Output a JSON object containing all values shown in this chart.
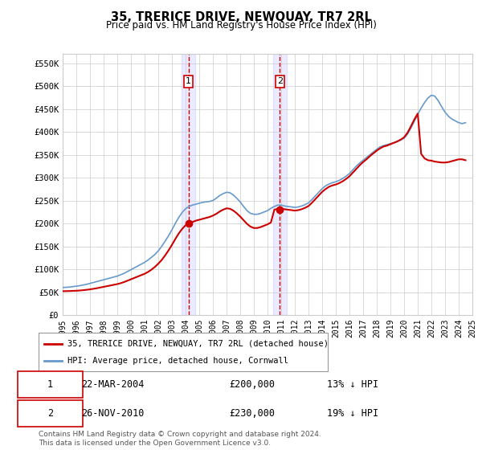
{
  "title": "35, TRERICE DRIVE, NEWQUAY, TR7 2RL",
  "subtitle": "Price paid vs. HM Land Registry's House Price Index (HPI)",
  "hpi_label": "HPI: Average price, detached house, Cornwall",
  "property_label": "35, TRERICE DRIVE, NEWQUAY, TR7 2RL (detached house)",
  "footnote": "Contains HM Land Registry data © Crown copyright and database right 2024.\nThis data is licensed under the Open Government Licence v3.0.",
  "ylim": [
    0,
    570000
  ],
  "yticks": [
    0,
    50000,
    100000,
    150000,
    200000,
    250000,
    300000,
    350000,
    400000,
    450000,
    500000,
    550000
  ],
  "ytick_labels": [
    "£0",
    "£50K",
    "£100K",
    "£150K",
    "£200K",
    "£250K",
    "£300K",
    "£350K",
    "£400K",
    "£450K",
    "£500K",
    "£550K"
  ],
  "xmin_year": 1995,
  "xmax_year": 2025,
  "xtick_years": [
    1995,
    1996,
    1997,
    1998,
    1999,
    2000,
    2001,
    2002,
    2003,
    2004,
    2005,
    2006,
    2007,
    2008,
    2009,
    2010,
    2011,
    2012,
    2013,
    2014,
    2015,
    2016,
    2017,
    2018,
    2019,
    2020,
    2021,
    2022,
    2023,
    2024,
    2025
  ],
  "property_color": "#cc0000",
  "hpi_color": "#6699cc",
  "annotation_line_color": "#cc0000",
  "annotation_bg_color": "#ddeeff",
  "transaction1": {
    "label": "1",
    "date": "22-MAR-2004",
    "price": 200000,
    "pct": "13%",
    "direction": "↓",
    "year": 2004.22
  },
  "transaction2": {
    "label": "2",
    "date": "26-NOV-2010",
    "price": 230000,
    "pct": "19%",
    "direction": "↓",
    "year": 2010.9
  },
  "hpi_data_x": [
    1995,
    1995.25,
    1995.5,
    1995.75,
    1996,
    1996.25,
    1996.5,
    1996.75,
    1997,
    1997.25,
    1997.5,
    1997.75,
    1998,
    1998.25,
    1998.5,
    1998.75,
    1999,
    1999.25,
    1999.5,
    1999.75,
    2000,
    2000.25,
    2000.5,
    2000.75,
    2001,
    2001.25,
    2001.5,
    2001.75,
    2002,
    2002.25,
    2002.5,
    2002.75,
    2003,
    2003.25,
    2003.5,
    2003.75,
    2004,
    2004.25,
    2004.5,
    2004.75,
    2005,
    2005.25,
    2005.5,
    2005.75,
    2006,
    2006.25,
    2006.5,
    2006.75,
    2007,
    2007.25,
    2007.5,
    2007.75,
    2008,
    2008.25,
    2008.5,
    2008.75,
    2009,
    2009.25,
    2009.5,
    2009.75,
    2010,
    2010.25,
    2010.5,
    2010.75,
    2011,
    2011.25,
    2011.5,
    2011.75,
    2012,
    2012.25,
    2012.5,
    2012.75,
    2013,
    2013.25,
    2013.5,
    2013.75,
    2014,
    2014.25,
    2014.5,
    2014.75,
    2015,
    2015.25,
    2015.5,
    2015.75,
    2016,
    2016.25,
    2016.5,
    2016.75,
    2017,
    2017.25,
    2017.5,
    2017.75,
    2018,
    2018.25,
    2018.5,
    2018.75,
    2019,
    2019.25,
    2019.5,
    2019.75,
    2020,
    2020.25,
    2020.5,
    2020.75,
    2021,
    2021.25,
    2021.5,
    2021.75,
    2022,
    2022.25,
    2022.5,
    2022.75,
    2023,
    2023.25,
    2023.5,
    2023.75,
    2024,
    2024.25,
    2024.5
  ],
  "hpi_data_y": [
    60000,
    60500,
    61000,
    62000,
    63000,
    64000,
    65500,
    67000,
    69000,
    71000,
    73000,
    75000,
    77000,
    79000,
    81000,
    83000,
    85000,
    88000,
    91000,
    95000,
    99000,
    103000,
    107000,
    111000,
    115000,
    120000,
    126000,
    132000,
    140000,
    150000,
    161000,
    173000,
    186000,
    200000,
    213000,
    224000,
    232000,
    237000,
    240000,
    242000,
    244000,
    246000,
    247000,
    248000,
    250000,
    255000,
    261000,
    265000,
    268000,
    267000,
    262000,
    255000,
    247000,
    237000,
    228000,
    222000,
    220000,
    220000,
    222000,
    225000,
    228000,
    233000,
    237000,
    240000,
    240000,
    238000,
    237000,
    236000,
    235000,
    236000,
    238000,
    241000,
    245000,
    252000,
    260000,
    268000,
    276000,
    282000,
    286000,
    289000,
    291000,
    294000,
    298000,
    303000,
    309000,
    317000,
    325000,
    332000,
    338000,
    344000,
    350000,
    356000,
    362000,
    367000,
    370000,
    372000,
    374000,
    376000,
    379000,
    382000,
    386000,
    395000,
    408000,
    423000,
    438000,
    452000,
    464000,
    474000,
    480000,
    478000,
    468000,
    455000,
    443000,
    434000,
    428000,
    424000,
    420000,
    418000,
    420000
  ],
  "property_data_x": [
    1995,
    1995.25,
    1995.5,
    1995.75,
    1996,
    1996.25,
    1996.5,
    1996.75,
    1997,
    1997.25,
    1997.5,
    1997.75,
    1998,
    1998.25,
    1998.5,
    1998.75,
    1999,
    1999.25,
    1999.5,
    1999.75,
    2000,
    2000.25,
    2000.5,
    2000.75,
    2001,
    2001.25,
    2001.5,
    2001.75,
    2002,
    2002.25,
    2002.5,
    2002.75,
    2003,
    2003.25,
    2003.5,
    2003.75,
    2004,
    2004.25,
    2004.5,
    2004.75,
    2005,
    2005.25,
    2005.5,
    2005.75,
    2006,
    2006.25,
    2006.5,
    2006.75,
    2007,
    2007.25,
    2007.5,
    2007.75,
    2008,
    2008.25,
    2008.5,
    2008.75,
    2009,
    2009.25,
    2009.5,
    2009.75,
    2010,
    2010.25,
    2010.5,
    2010.75,
    2011,
    2011.25,
    2011.5,
    2011.75,
    2012,
    2012.25,
    2012.5,
    2012.75,
    2013,
    2013.25,
    2013.5,
    2013.75,
    2014,
    2014.25,
    2014.5,
    2014.75,
    2015,
    2015.25,
    2015.5,
    2015.75,
    2016,
    2016.25,
    2016.5,
    2016.75,
    2017,
    2017.25,
    2017.5,
    2017.75,
    2018,
    2018.25,
    2018.5,
    2018.75,
    2019,
    2019.25,
    2019.5,
    2019.75,
    2020,
    2020.25,
    2020.5,
    2020.75,
    2021,
    2021.25,
    2021.5,
    2021.75,
    2022,
    2022.25,
    2022.5,
    2022.75,
    2023,
    2023.25,
    2023.5,
    2023.75,
    2024,
    2024.25,
    2024.5
  ],
  "property_data_y": [
    52000,
    52200,
    52400,
    52700,
    53000,
    53500,
    54200,
    55000,
    56000,
    57200,
    58500,
    60000,
    61500,
    63000,
    64500,
    66000,
    67500,
    69500,
    72000,
    75000,
    78000,
    81000,
    84000,
    87000,
    90000,
    94000,
    99000,
    105000,
    112000,
    120000,
    130000,
    141000,
    153000,
    166000,
    178000,
    188000,
    196000,
    200000,
    203000,
    206000,
    208000,
    210000,
    212000,
    214000,
    217000,
    221000,
    226000,
    230000,
    233000,
    232000,
    228000,
    222000,
    215000,
    207000,
    199000,
    193000,
    190000,
    190000,
    192000,
    195000,
    198000,
    202000,
    230000,
    232000,
    233000,
    231000,
    230000,
    229000,
    228000,
    229000,
    231000,
    234000,
    238000,
    245000,
    253000,
    261000,
    269000,
    275000,
    280000,
    283000,
    285000,
    288000,
    292000,
    297000,
    303000,
    311000,
    319000,
    327000,
    334000,
    340000,
    347000,
    353000,
    359000,
    364000,
    368000,
    370000,
    373000,
    376000,
    379000,
    383000,
    388000,
    398000,
    412000,
    427000,
    440000,
    352000,
    342000,
    338000,
    337000,
    335000,
    334000,
    333000,
    333000,
    334000,
    336000,
    338000,
    340000,
    340000,
    338000
  ]
}
